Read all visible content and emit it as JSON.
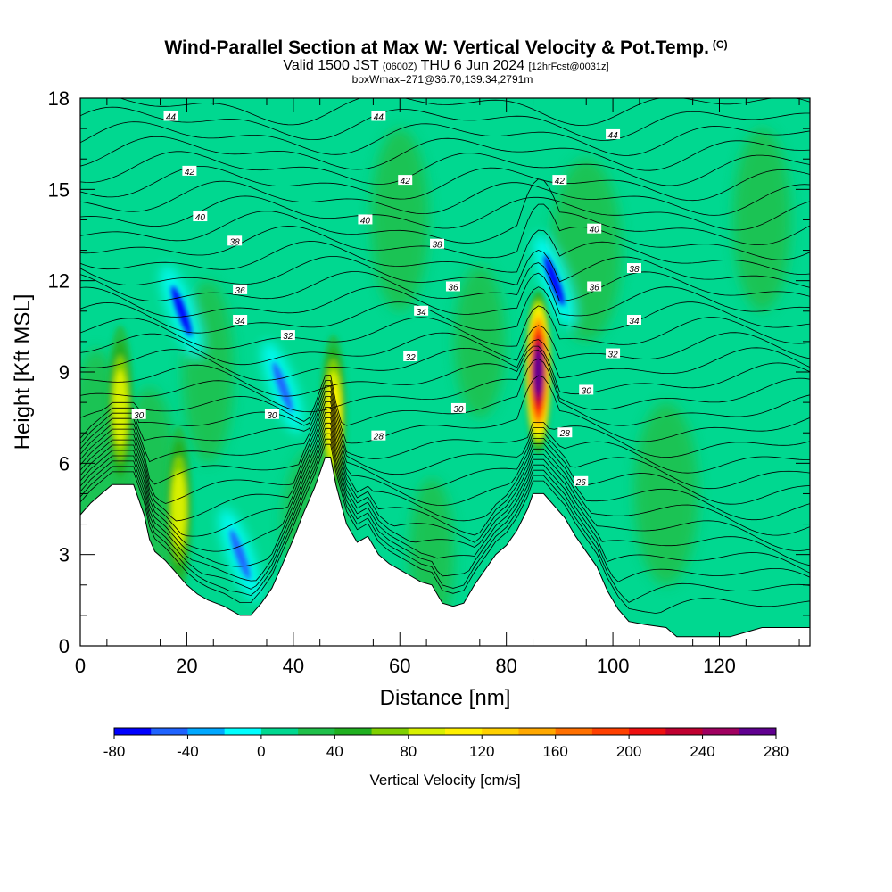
{
  "header": {
    "title": "Wind-Parallel Section at Max W: Vertical Velocity & Pot.Temp.",
    "copyright": "(C)",
    "valid_prefix": "Valid 1500 JST",
    "valid_zulu": "(0600Z)",
    "valid_date": "THU 6 Jun 2024",
    "forecast": "[12hrFcst@0031z]",
    "boxline": "boxWmax=271@36.70,139.34,2791m"
  },
  "chart_data": {
    "type": "heatmap",
    "xlabel": "Distance [nm]",
    "ylabel": "Height [Kft MSL]",
    "xlim": [
      0,
      137
    ],
    "ylim": [
      0,
      18
    ],
    "x_ticks": [
      "0",
      "20",
      "40",
      "60",
      "80",
      "100",
      "120"
    ],
    "y_ticks": [
      "0",
      "3",
      "6",
      "9",
      "12",
      "15",
      "18"
    ],
    "colorbar": {
      "title": "Vertical Velocity [cm/s]",
      "range": [
        -80,
        280
      ],
      "step": 20,
      "tick_labels": [
        "-80",
        "-40",
        "0",
        "40",
        "80",
        "120",
        "160",
        "200",
        "240",
        "280"
      ],
      "colors": [
        "#0000ff",
        "#1f63ff",
        "#00a8ff",
        "#00ffff",
        "#00d890",
        "#1fc04a",
        "#20b020",
        "#80d000",
        "#d8f000",
        "#fff000",
        "#ffd000",
        "#ffa800",
        "#ff7000",
        "#ff4000",
        "#ee1010",
        "#c00030",
        "#a00060",
        "#600090"
      ]
    },
    "terrain_kft": [
      [
        0,
        4.3
      ],
      [
        2,
        4.7
      ],
      [
        4,
        5.0
      ],
      [
        6,
        5.3
      ],
      [
        10,
        5.3
      ],
      [
        12,
        4.3
      ],
      [
        13,
        3.5
      ],
      [
        14,
        3.1
      ],
      [
        16,
        2.8
      ],
      [
        18,
        2.4
      ],
      [
        20,
        2.0
      ],
      [
        22,
        1.7
      ],
      [
        24,
        1.5
      ],
      [
        27,
        1.3
      ],
      [
        30,
        1.0
      ],
      [
        32,
        1.0
      ],
      [
        34,
        1.4
      ],
      [
        36,
        1.9
      ],
      [
        38,
        2.7
      ],
      [
        40,
        3.5
      ],
      [
        42,
        4.4
      ],
      [
        44,
        5.2
      ],
      [
        46,
        6.2
      ],
      [
        47,
        6.2
      ],
      [
        48,
        5.3
      ],
      [
        50,
        4.0
      ],
      [
        52,
        3.4
      ],
      [
        54,
        3.6
      ],
      [
        56,
        3.0
      ],
      [
        58,
        2.7
      ],
      [
        60,
        2.5
      ],
      [
        62,
        2.3
      ],
      [
        64,
        2.1
      ],
      [
        66,
        2.0
      ],
      [
        68,
        1.4
      ],
      [
        70,
        1.3
      ],
      [
        72,
        1.4
      ],
      [
        74,
        2.0
      ],
      [
        76,
        2.5
      ],
      [
        78,
        3.0
      ],
      [
        80,
        3.3
      ],
      [
        82,
        3.8
      ],
      [
        84,
        4.5
      ],
      [
        85,
        5.0
      ],
      [
        87,
        5.0
      ],
      [
        89,
        4.6
      ],
      [
        91,
        4.2
      ],
      [
        93,
        3.6
      ],
      [
        95,
        3.1
      ],
      [
        97,
        2.6
      ],
      [
        99,
        1.8
      ],
      [
        101,
        1.2
      ],
      [
        103,
        0.8
      ],
      [
        106,
        0.7
      ],
      [
        110,
        0.6
      ],
      [
        112,
        0.3
      ],
      [
        122,
        0.3
      ],
      [
        124,
        0.4
      ],
      [
        128,
        0.6
      ],
      [
        137,
        0.6
      ]
    ],
    "updrafts": [
      {
        "x": 7.5,
        "z": 7.8,
        "max_cms": 100
      },
      {
        "x": 18.5,
        "z": 4.5,
        "max_cms": 90
      },
      {
        "x": 47.5,
        "z": 7.5,
        "max_cms": 120
      },
      {
        "x": 86,
        "z": 9.0,
        "max_cms": 271
      }
    ],
    "downdrafts": [
      {
        "x": 19,
        "z": 11,
        "min_cms": -70
      },
      {
        "x": 30,
        "z": 3,
        "min_cms": -60
      },
      {
        "x": 38,
        "z": 8.5,
        "min_cms": -45
      },
      {
        "x": 89,
        "z": 12,
        "min_cms": -75
      }
    ],
    "theta_labels": [
      {
        "text": "44",
        "x": 17,
        "z": 17.4
      },
      {
        "text": "44",
        "x": 56,
        "z": 17.4
      },
      {
        "text": "44",
        "x": 100,
        "z": 16.8
      },
      {
        "text": "42",
        "x": 20.5,
        "z": 15.6
      },
      {
        "text": "42",
        "x": 61,
        "z": 15.3
      },
      {
        "text": "42",
        "x": 90,
        "z": 15.3
      },
      {
        "text": "40",
        "x": 22.5,
        "z": 14.1
      },
      {
        "text": "40",
        "x": 53.5,
        "z": 14.0
      },
      {
        "text": "40",
        "x": 96.5,
        "z": 13.7
      },
      {
        "text": "38",
        "x": 29,
        "z": 13.3
      },
      {
        "text": "38",
        "x": 67,
        "z": 13.2
      },
      {
        "text": "38",
        "x": 104,
        "z": 12.4
      },
      {
        "text": "36",
        "x": 30,
        "z": 11.7
      },
      {
        "text": "36",
        "x": 70,
        "z": 11.8
      },
      {
        "text": "36",
        "x": 96.5,
        "z": 11.8
      },
      {
        "text": "34",
        "x": 30,
        "z": 10.7
      },
      {
        "text": "34",
        "x": 64,
        "z": 11.0
      },
      {
        "text": "34",
        "x": 104,
        "z": 10.7
      },
      {
        "text": "32",
        "x": 39,
        "z": 10.2
      },
      {
        "text": "32",
        "x": 62,
        "z": 9.5
      },
      {
        "text": "32",
        "x": 100,
        "z": 9.6
      },
      {
        "text": "30",
        "x": 11,
        "z": 7.6
      },
      {
        "text": "30",
        "x": 36,
        "z": 7.6
      },
      {
        "text": "30",
        "x": 71,
        "z": 7.8
      },
      {
        "text": "30",
        "x": 95,
        "z": 8.4
      },
      {
        "text": "28",
        "x": 56,
        "z": 6.9
      },
      {
        "text": "28",
        "x": 91,
        "z": 7.0
      },
      {
        "text": "26",
        "x": 94,
        "z": 5.4
      }
    ]
  }
}
